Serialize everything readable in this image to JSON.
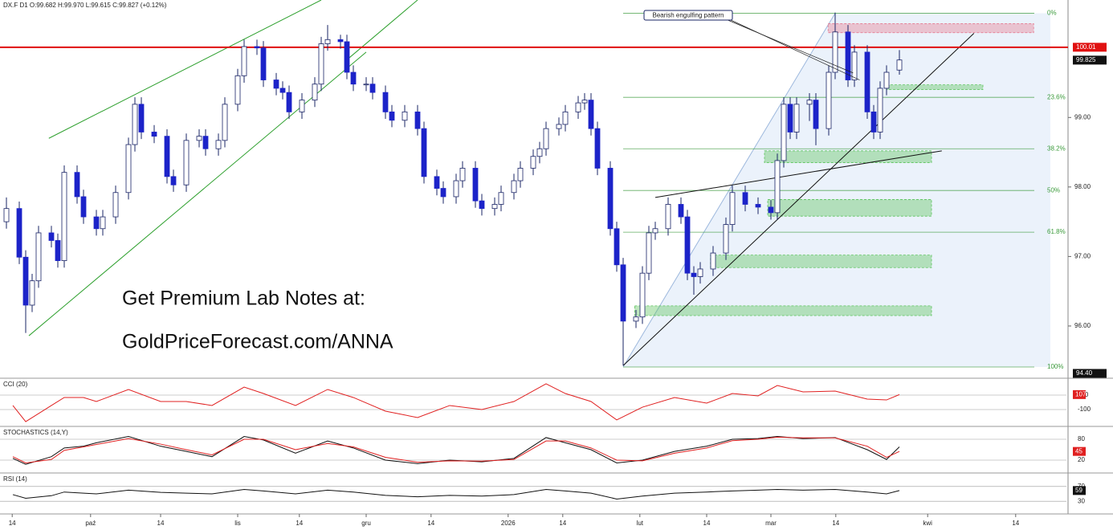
{
  "chart_data": [
    {
      "type": "candlestick",
      "title": "DX.F D1 O:99.682 H:99.970 L:99.615 C:99.827 (+0.12%)",
      "x": [
        -1,
        1,
        2,
        3,
        4,
        6,
        7,
        8,
        10,
        11,
        13,
        14,
        16,
        18,
        19,
        20,
        22,
        24,
        25,
        27,
        29,
        30,
        32,
        33,
        35,
        36,
        38,
        39,
        41,
        42,
        43,
        45,
        47,
        48,
        49,
        51,
        52,
        53,
        55,
        56,
        58,
        59,
        61,
        63,
        64,
        66,
        67,
        69,
        70,
        72,
        73,
        75,
        76,
        78,
        79,
        81,
        82,
        83,
        85,
        86,
        88,
        89,
        90,
        91,
        93,
        94,
        95,
        97,
        98,
        99,
        100,
        102,
        104,
        105,
        106,
        107,
        109,
        111,
        112,
        114,
        116,
        118,
        119,
        120,
        121,
        122,
        124,
        125,
        127,
        128,
        130,
        131,
        133,
        134,
        135,
        136,
        138
      ],
      "open": [
        97.5,
        97.69,
        96.99,
        96.3,
        96.65,
        97.34,
        97.23,
        96.94,
        98.21,
        97.86,
        97.57,
        97.4,
        97.57,
        97.92,
        98.61,
        99.19,
        98.79,
        98.73,
        98.15,
        98.03,
        98.67,
        98.73,
        98.55,
        98.67,
        99.19,
        99.6,
        100.02,
        100.0,
        99.54,
        99.42,
        99.36,
        99.08,
        99.25,
        99.48,
        100.06,
        100.12,
        100.09,
        99.65,
        99.48,
        99.48,
        99.36,
        99.08,
        98.96,
        99.08,
        98.84,
        98.15,
        97.98,
        97.86,
        98.09,
        98.27,
        97.8,
        97.69,
        97.75,
        97.92,
        98.09,
        98.27,
        98.44,
        98.55,
        98.84,
        98.9,
        99.08,
        99.21,
        99.25,
        98.84,
        98.27,
        97.4,
        96.88,
        96.07,
        96.13,
        96.76,
        97.34,
        97.4,
        97.75,
        97.57,
        96.76,
        96.71,
        96.82,
        97.05,
        97.46,
        97.92,
        97.75,
        97.71,
        97.63,
        98.38,
        99.19,
        98.79,
        99.19,
        99.25,
        98.84,
        99.65,
        100.23,
        99.54,
        99.94,
        99.08,
        98.79,
        99.42,
        99.682
      ],
      "high": [
        97.85,
        97.79,
        97.09,
        96.75,
        97.44,
        97.44,
        97.33,
        98.31,
        98.31,
        97.96,
        97.67,
        97.67,
        98.02,
        98.71,
        99.29,
        99.29,
        98.89,
        98.83,
        98.25,
        98.77,
        98.83,
        98.83,
        98.77,
        99.29,
        99.7,
        100.12,
        100.12,
        100.1,
        99.64,
        99.52,
        99.46,
        99.35,
        99.58,
        100.16,
        100.33,
        100.19,
        100.19,
        99.75,
        99.58,
        99.58,
        99.46,
        99.18,
        99.18,
        99.18,
        98.94,
        98.25,
        98.08,
        98.19,
        98.37,
        98.37,
        97.9,
        97.85,
        98.02,
        98.19,
        98.37,
        98.54,
        98.65,
        98.94,
        99.0,
        99.18,
        99.31,
        99.35,
        99.35,
        98.94,
        98.37,
        97.5,
        96.98,
        96.23,
        96.86,
        97.44,
        97.5,
        97.85,
        97.85,
        97.67,
        96.86,
        96.92,
        97.15,
        97.56,
        98.02,
        98.02,
        97.85,
        97.81,
        98.48,
        99.29,
        99.29,
        99.29,
        99.35,
        99.35,
        99.75,
        100.51,
        100.33,
        100.04,
        100.04,
        99.18,
        99.52,
        99.75,
        99.97
      ],
      "low": [
        97.4,
        96.89,
        95.9,
        96.2,
        96.55,
        97.13,
        96.84,
        96.84,
        97.76,
        97.47,
        97.3,
        97.3,
        97.47,
        97.82,
        98.51,
        98.69,
        98.63,
        98.05,
        97.93,
        97.93,
        98.57,
        98.45,
        98.45,
        98.57,
        99.09,
        99.5,
        99.9,
        99.44,
        99.32,
        99.26,
        98.98,
        98.98,
        99.15,
        99.38,
        99.96,
        99.99,
        99.55,
        99.38,
        99.38,
        99.26,
        98.98,
        98.86,
        98.86,
        98.74,
        98.05,
        97.88,
        97.76,
        97.76,
        97.99,
        97.7,
        97.59,
        97.59,
        97.65,
        97.82,
        97.99,
        98.17,
        98.34,
        98.45,
        98.74,
        98.8,
        98.98,
        99.11,
        98.74,
        98.17,
        97.3,
        96.78,
        95.43,
        95.97,
        96.03,
        96.66,
        97.24,
        97.3,
        97.47,
        96.66,
        96.45,
        96.61,
        96.72,
        96.95,
        97.36,
        97.65,
        97.61,
        97.53,
        97.53,
        98.28,
        98.69,
        98.69,
        98.95,
        98.6,
        98.74,
        99.55,
        99.44,
        99.44,
        98.98,
        98.69,
        98.69,
        99.32,
        99.615
      ],
      "close": [
        97.69,
        96.99,
        96.3,
        96.65,
        97.34,
        97.23,
        96.94,
        98.21,
        97.86,
        97.57,
        97.4,
        97.57,
        97.92,
        98.61,
        99.19,
        98.79,
        98.73,
        98.15,
        98.03,
        98.67,
        98.73,
        98.55,
        98.67,
        99.19,
        99.6,
        100.02,
        100.0,
        99.54,
        99.42,
        99.36,
        99.08,
        99.25,
        99.48,
        100.06,
        100.12,
        100.09,
        99.65,
        99.48,
        99.48,
        99.36,
        99.08,
        98.96,
        99.08,
        98.84,
        98.15,
        97.98,
        97.86,
        98.09,
        98.27,
        97.8,
        97.69,
        97.75,
        97.92,
        98.09,
        98.27,
        98.44,
        98.55,
        98.84,
        98.9,
        99.08,
        99.21,
        99.25,
        98.84,
        98.27,
        97.4,
        96.88,
        96.07,
        96.13,
        96.76,
        97.34,
        97.4,
        97.75,
        97.57,
        96.76,
        96.71,
        96.82,
        97.05,
        97.46,
        97.92,
        97.75,
        97.71,
        97.63,
        98.38,
        99.19,
        98.79,
        99.19,
        99.25,
        98.84,
        99.65,
        100.23,
        99.54,
        99.94,
        99.08,
        98.79,
        99.42,
        99.65,
        99.827
      ],
      "up_color": "#ffffff",
      "down_color": "#1c23c9",
      "wick_color": "#1a2466",
      "xlim": [
        -2,
        164
      ],
      "ylim": [
        95.26,
        100.69
      ],
      "xticks": [
        {
          "value": -0.1,
          "label": "14"
        },
        {
          "value": 12.1,
          "label": "paź"
        },
        {
          "value": 23,
          "label": "14"
        },
        {
          "value": 35,
          "label": "lis"
        },
        {
          "value": 44.6,
          "label": "14"
        },
        {
          "value": 55,
          "label": "gru"
        },
        {
          "value": 65.1,
          "label": "14"
        },
        {
          "value": 77.1,
          "label": "2026"
        },
        {
          "value": 85.6,
          "label": "14"
        },
        {
          "value": 97.6,
          "label": "lut"
        },
        {
          "value": 108,
          "label": "14"
        },
        {
          "value": 118,
          "label": "mar"
        },
        {
          "value": 128.1,
          "label": "14"
        },
        {
          "value": 142.4,
          "label": "kwi"
        },
        {
          "value": 156.1,
          "label": "14"
        }
      ],
      "yticks": [
        {
          "value": 99,
          "label": "99.00"
        },
        {
          "value": 98,
          "label": "98.00"
        },
        {
          "value": 97,
          "label": "97.00"
        },
        {
          "value": 96,
          "label": "96.00"
        }
      ],
      "resistance": {
        "value": 100.01,
        "color": "#e01010"
      },
      "last_price": 99.825,
      "low_label": {
        "value": 94.4,
        "label": "94.40"
      },
      "fibonacci": {
        "x": [
          95,
          128
        ],
        "color": "#3a9a3a",
        "fill": "#dbe8f7",
        "levels": [
          {
            "value": 100.5,
            "label": "0%"
          },
          {
            "value": 99.29,
            "label": "23.6%"
          },
          {
            "value": 98.55,
            "label": "38.2%"
          },
          {
            "value": 97.95,
            "label": "50%"
          },
          {
            "value": 97.35,
            "label": "61.8%"
          },
          {
            "value": 95.41,
            "label": "100%"
          }
        ]
      },
      "zones": [
        {
          "x": [
            136,
            151
          ],
          "values": [
            99.4,
            99.47
          ],
          "color": "#5cc45c"
        },
        {
          "x": [
            117,
            143
          ],
          "values": [
            98.35,
            98.52
          ],
          "color": "#5cc45c"
        },
        {
          "x": [
            117.5,
            143
          ],
          "values": [
            97.58,
            97.82
          ],
          "color": "#5cc45c"
        },
        {
          "x": [
            108.6,
            143
          ],
          "values": [
            96.84,
            97.02
          ],
          "color": "#5cc45c"
        },
        {
          "x": [
            96.8,
            143
          ],
          "values": [
            96.15,
            96.29
          ],
          "color": "#5cc45c"
        },
        {
          "x": [
            126.9,
            158.9
          ],
          "values": [
            100.22,
            100.35
          ],
          "color": "#e67c92"
        }
      ],
      "trendlines": [
        {
          "x": [
            5.6,
            48
          ],
          "values": [
            98.7,
            100.69
          ],
          "color": "#2ea02e"
        },
        {
          "x": [
            52,
            63
          ],
          "values": [
            99.83,
            100.69
          ],
          "color": "#2ea02e"
        },
        {
          "x": [
            2.5,
            55
          ],
          "values": [
            95.86,
            99.94
          ],
          "color": "#2ea02e"
        },
        {
          "x": [
            95,
            149.6
          ],
          "values": [
            95.43,
            100.21
          ],
          "color": "#111111"
        },
        {
          "x": [
            100,
            144.6
          ],
          "values": [
            97.85,
            98.52
          ],
          "color": "#111111"
        }
      ],
      "annotation": {
        "text": "Bearish engulfing pattern",
        "x": [
          130.8,
          131.8
        ],
        "values": [
          99.64,
          99.54
        ]
      },
      "watermark": [
        "Get Premium Lab Notes at:",
        "GoldPriceForecast.com/ANNA"
      ]
    },
    {
      "type": "line",
      "title": "CCI (20)",
      "x": [
        0,
        2,
        6,
        8,
        11,
        13,
        18,
        23,
        27,
        31,
        36,
        39,
        44,
        49,
        53,
        58,
        63,
        68,
        73,
        78,
        83,
        86,
        90,
        94,
        98,
        103,
        108,
        112,
        116,
        119,
        123,
        128,
        133,
        136,
        138
      ],
      "series": [
        {
          "color": "#e02020",
          "value_box": true,
          "values": [
            -44,
            -267,
            -44,
            67,
            67,
            11,
            178,
            11,
            11,
            -44,
            211,
            122,
            -44,
            178,
            67,
            -122,
            -211,
            -44,
            -100,
            11,
            256,
            122,
            11,
            -244,
            -67,
            67,
            -11,
            122,
            89,
            233,
            144,
            156,
            44,
            33,
            107
          ]
        }
      ],
      "ylim": [
        -300,
        300
      ],
      "yticks": [
        100,
        -100
      ]
    },
    {
      "type": "line",
      "title": "STOCHASTICS (14,Y)",
      "x": [
        0,
        2,
        6,
        8,
        11,
        13,
        18,
        23,
        27,
        31,
        36,
        39,
        44,
        49,
        53,
        58,
        63,
        68,
        73,
        78,
        83,
        86,
        90,
        94,
        98,
        103,
        108,
        112,
        116,
        119,
        123,
        128,
        133,
        136,
        138
      ],
      "series": [
        {
          "color": "#111111",
          "values": [
            25,
            8,
            30,
            55,
            60,
            70,
            88,
            60,
            45,
            30,
            88,
            78,
            40,
            75,
            55,
            20,
            10,
            20,
            15,
            25,
            85,
            70,
            50,
            12,
            20,
            45,
            60,
            80,
            82,
            88,
            82,
            85,
            50,
            22,
            58
          ]
        },
        {
          "color": "#e02020",
          "value_box": true,
          "values": [
            30,
            12,
            22,
            48,
            58,
            65,
            82,
            66,
            50,
            35,
            80,
            80,
            50,
            68,
            58,
            28,
            14,
            18,
            17,
            22,
            75,
            75,
            55,
            20,
            18,
            40,
            55,
            76,
            80,
            86,
            84,
            84,
            60,
            28,
            45
          ]
        }
      ],
      "ylim": [
        -10,
        110
      ],
      "yticks": [
        80,
        20
      ]
    },
    {
      "type": "line",
      "title": "RSI (14)",
      "x": [
        0,
        2,
        6,
        8,
        11,
        13,
        18,
        23,
        27,
        31,
        36,
        39,
        44,
        49,
        53,
        58,
        63,
        68,
        73,
        78,
        83,
        86,
        90,
        94,
        98,
        103,
        108,
        112,
        116,
        119,
        123,
        128,
        133,
        136,
        138
      ],
      "series": [
        {
          "color": "#111111",
          "value_box": true,
          "values": [
            48,
            38,
            45,
            55,
            52,
            50,
            60,
            54,
            52,
            50,
            62,
            58,
            50,
            60,
            55,
            46,
            42,
            46,
            44,
            48,
            62,
            58,
            52,
            36,
            44,
            52,
            55,
            58,
            60,
            62,
            60,
            62,
            55,
            50,
            59
          ]
        }
      ],
      "ylim": [
        0,
        100
      ],
      "yticks": [
        70,
        30
      ]
    }
  ]
}
